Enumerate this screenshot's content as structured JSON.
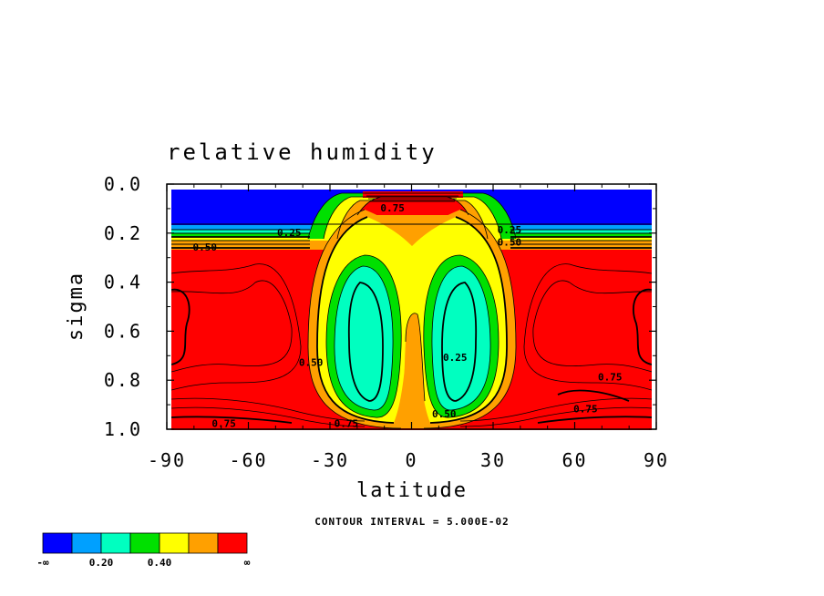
{
  "chart_data": {
    "type": "heatmap",
    "title": "relative humidity",
    "xlabel": "latitude",
    "ylabel": "sigma",
    "xlim": [
      -90,
      90
    ],
    "ylim": [
      1.0,
      0.0
    ],
    "x_ticks": [
      -90,
      -60,
      -30,
      0,
      30,
      60,
      90
    ],
    "y_ticks": [
      0.0,
      0.2,
      0.4,
      0.6,
      0.8,
      1.0
    ],
    "x_tick_labels": [
      "-90",
      "-60",
      "-30",
      "0",
      "30",
      "60",
      "90"
    ],
    "y_tick_labels": [
      "0.0",
      "0.2",
      "0.4",
      "0.6",
      "0.8",
      "1.0"
    ],
    "contour_interval_text": "CONTOUR INTERVAL = 5.000E-02",
    "contour_interval": 0.05,
    "labeled_contours": [
      {
        "text": "0.25",
        "lat": -45,
        "sigma": 0.2
      },
      {
        "text": "0.50",
        "lat": -76,
        "sigma": 0.26
      },
      {
        "text": "0.25",
        "lat": 36,
        "sigma": 0.19
      },
      {
        "text": "0.50",
        "lat": 36,
        "sigma": 0.24
      },
      {
        "text": "0.75",
        "lat": -7,
        "sigma": 0.1
      },
      {
        "text": "0.50",
        "lat": -37,
        "sigma": 0.73
      },
      {
        "text": "0.25",
        "lat": 16,
        "sigma": 0.71
      },
      {
        "text": "0.75",
        "lat": 73,
        "sigma": 0.79
      },
      {
        "text": "0.75",
        "lat": 64,
        "sigma": 0.92
      },
      {
        "text": "0.50",
        "lat": 12,
        "sigma": 0.94
      },
      {
        "text": "0.75",
        "lat": -24,
        "sigma": 0.98
      },
      {
        "text": "0.75",
        "lat": -69,
        "sigma": 0.98
      }
    ],
    "colorbar": {
      "bounds": [
        "-∞",
        "",
        "0.20",
        "",
        "0.40",
        "",
        "",
        "∞"
      ],
      "levels": [
        {
          "range": "< 0.10",
          "color": "#0000ff"
        },
        {
          "range": "0.10-0.20",
          "color": "#00a0ff"
        },
        {
          "range": "0.20-0.30",
          "color": "#00ffc0"
        },
        {
          "range": "0.30-0.40",
          "color": "#00e000"
        },
        {
          "range": "0.40-0.50",
          "color": "#ffff00"
        },
        {
          "range": "0.50-0.60",
          "color": "#ffa000"
        },
        {
          "range": "> 0.60",
          "color": "#ff0000"
        }
      ]
    }
  }
}
